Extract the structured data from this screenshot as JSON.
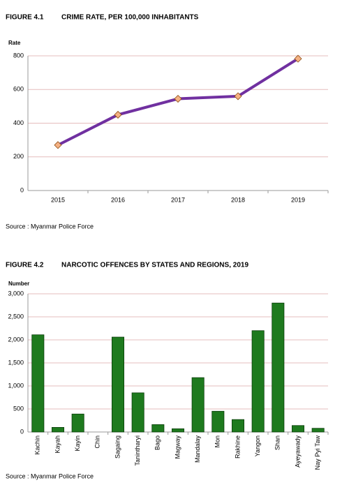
{
  "chart_data": [
    {
      "type": "line",
      "figure": "FIGURE 4.1",
      "title": "CRIME RATE, PER 100,000 INHABITANTS",
      "ylabel": "Rate",
      "categories": [
        "2015",
        "2016",
        "2017",
        "2018",
        "2019"
      ],
      "values": [
        270,
        450,
        545,
        560,
        783
      ],
      "color": "#7030a0",
      "marker_color": "#f4b183",
      "ylim": [
        0,
        800
      ],
      "yticks": [
        0,
        200,
        400,
        600,
        800
      ],
      "grid": true,
      "source": "Source : Myanmar Police Force"
    },
    {
      "type": "bar",
      "figure": "FIGURE 4.2",
      "title": "NARCOTIC OFFENCES BY STATES AND REGIONS, 2019",
      "ylabel": "Number",
      "categories": [
        "Kachin",
        "Kayah",
        "Kayin",
        "Chin",
        "Sagaing",
        "Tanintharyi",
        "Bago",
        "Magway",
        "Mandalay",
        "Mon",
        "Rakhine",
        "Yangon",
        "Shan",
        "Ayeyawady",
        "Nay Pyi Taw"
      ],
      "values": [
        2110,
        100,
        390,
        0,
        2060,
        850,
        160,
        70,
        1180,
        450,
        270,
        2200,
        2800,
        140,
        80
      ],
      "color": "#1e7a1e",
      "ylim": [
        0,
        3000
      ],
      "yticks": [
        0,
        500,
        {
          "value": 1000,
          "label": "1,000"
        },
        {
          "value": 1500,
          "label": "1,500"
        },
        {
          "value": 2000,
          "label": "2,000"
        },
        {
          "value": 2500,
          "label": "2,500"
        },
        {
          "value": 3000,
          "label": "3,000"
        }
      ],
      "grid": true,
      "source": "Source : Myanmar Police Force"
    }
  ]
}
